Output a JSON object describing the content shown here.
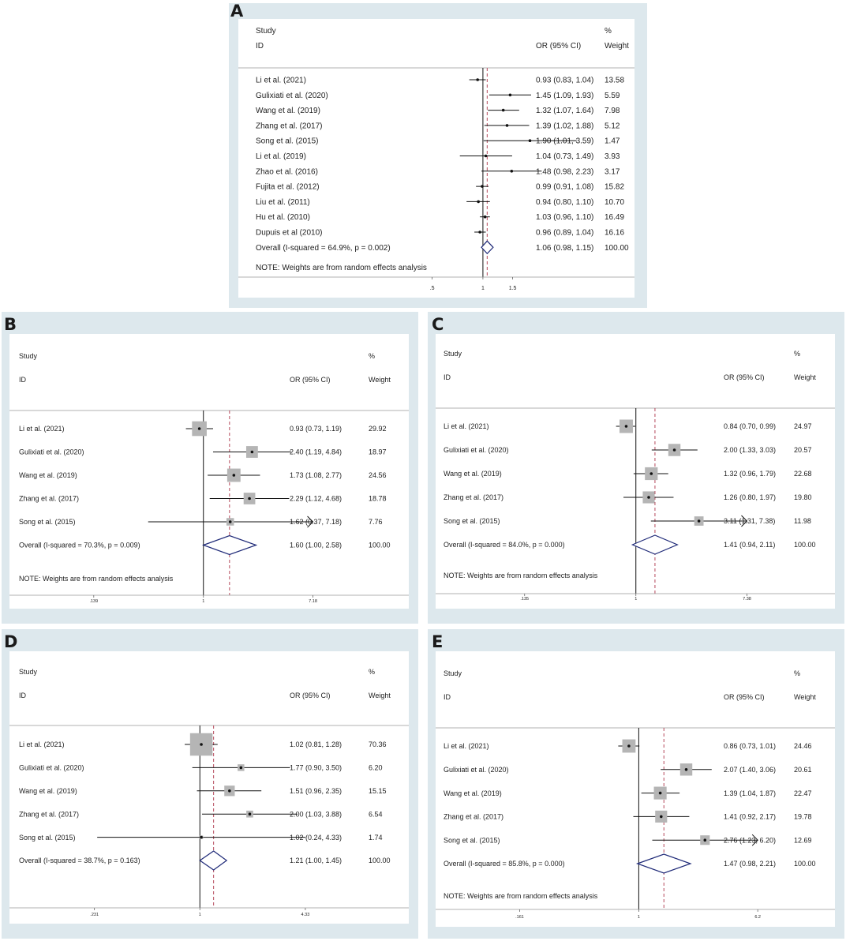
{
  "chart_data": [
    {
      "type": "forest",
      "panel": "A",
      "headers": {
        "study": "Study",
        "id": "ID",
        "or_ci": "OR (95% CI)",
        "pct": "%",
        "weight": "Weight"
      },
      "null_value": 1,
      "overall_estimate": 1.06,
      "x_ticks": [
        0.5,
        1,
        1.5
      ],
      "x_tick_labels": [
        ".5",
        "1",
        "1.5"
      ],
      "x_range": [
        0.21,
        2.5
      ],
      "square_style": "dot",
      "studies": [
        {
          "name": "Li et al. (2021)",
          "or": 0.93,
          "lo": 0.83,
          "hi": 1.04,
          "ci_text": "0.93 (0.83, 1.04)",
          "weight": 13.58,
          "weight_text": "13.58"
        },
        {
          "name": "Gulixiati et al. (2020)",
          "or": 1.45,
          "lo": 1.09,
          "hi": 1.93,
          "ci_text": "1.45 (1.09, 1.93)",
          "weight": 5.59,
          "weight_text": "5.59"
        },
        {
          "name": "Wang et al. (2019)",
          "or": 1.32,
          "lo": 1.07,
          "hi": 1.64,
          "ci_text": "1.32 (1.07, 1.64)",
          "weight": 7.98,
          "weight_text": "7.98"
        },
        {
          "name": "Zhang et al.  (2017)",
          "or": 1.39,
          "lo": 1.02,
          "hi": 1.88,
          "ci_text": "1.39 (1.02, 1.88)",
          "weight": 5.12,
          "weight_text": "5.12"
        },
        {
          "name": "Song et al.  (2015)",
          "or": 1.9,
          "lo": 1.01,
          "hi": 3.59,
          "ci_text": "1.90 (1.01, 3.59)",
          "weight": 1.47,
          "weight_text": "1.47"
        },
        {
          "name": "Li et al.  (2019)",
          "or": 1.04,
          "lo": 0.73,
          "hi": 1.49,
          "ci_text": "1.04 (0.73, 1.49)",
          "weight": 3.93,
          "weight_text": "3.93"
        },
        {
          "name": "Zhao et al. (2016)",
          "or": 1.48,
          "lo": 0.98,
          "hi": 2.23,
          "ci_text": "1.48 (0.98, 2.23)",
          "weight": 3.17,
          "weight_text": "3.17"
        },
        {
          "name": "Fujita et al.  (2012)",
          "or": 0.99,
          "lo": 0.91,
          "hi": 1.08,
          "ci_text": "0.99 (0.91, 1.08)",
          "weight": 15.82,
          "weight_text": "15.82"
        },
        {
          "name": "Liu et al.  (2011)",
          "or": 0.94,
          "lo": 0.8,
          "hi": 1.1,
          "ci_text": "0.94 (0.80, 1.10)",
          "weight": 10.7,
          "weight_text": "10.70"
        },
        {
          "name": "Hu et al. (2010)",
          "or": 1.03,
          "lo": 0.96,
          "hi": 1.1,
          "ci_text": "1.03 (0.96, 1.10)",
          "weight": 16.49,
          "weight_text": "16.49"
        },
        {
          "name": "Dupuis et al (2010)",
          "or": 0.96,
          "lo": 0.89,
          "hi": 1.04,
          "ci_text": "0.96 (0.89, 1.04)",
          "weight": 16.16,
          "weight_text": "16.16"
        }
      ],
      "overall": {
        "label": "Overall  (I-squared = 64.9%, p = 0.002)",
        "or": 1.06,
        "lo": 0.98,
        "hi": 1.15,
        "ci_text": "1.06 (0.98, 1.15)",
        "weight_text": "100.00"
      },
      "note": "NOTE: Weights are from random effects analysis"
    },
    {
      "type": "forest",
      "panel": "B",
      "headers": {
        "study": "Study",
        "id": "ID",
        "or_ci": "OR (95% CI)",
        "pct": "%",
        "weight": "Weight"
      },
      "null_value": 1,
      "overall_estimate": 1.6,
      "x_ticks": [
        0.139,
        1,
        7.18
      ],
      "x_tick_labels": [
        ".139",
        "1",
        "7.18"
      ],
      "x_range": [
        0.095,
        9.2
      ],
      "square_style": "box",
      "studies": [
        {
          "name": "Li et al. (2021)",
          "or": 0.93,
          "lo": 0.73,
          "hi": 1.19,
          "ci_text": "0.93 (0.73, 1.19)",
          "weight": 29.92,
          "weight_text": "29.92"
        },
        {
          "name": "Gulixiati et al. (2020)",
          "or": 2.4,
          "lo": 1.19,
          "hi": 4.84,
          "ci_text": "2.40 (1.19, 4.84)",
          "weight": 18.97,
          "weight_text": "18.97"
        },
        {
          "name": "Wang et al. (2019)",
          "or": 1.73,
          "lo": 1.08,
          "hi": 2.77,
          "ci_text": "1.73 (1.08, 2.77)",
          "weight": 24.56,
          "weight_text": "24.56"
        },
        {
          "name": "Zhang et al.  (2017)",
          "or": 2.29,
          "lo": 1.12,
          "hi": 4.68,
          "ci_text": "2.29 (1.12, 4.68)",
          "weight": 18.78,
          "weight_text": "18.78"
        },
        {
          "name": "Song et al.  (2015)",
          "or": 1.62,
          "lo": 0.37,
          "hi": 7.18,
          "ci_text": "1.62 (0.37, 7.18)",
          "weight": 7.76,
          "weight_text": "7.76",
          "arrow": true
        }
      ],
      "overall": {
        "label": "Overall  (I-squared = 70.3%, p = 0.009)",
        "or": 1.6,
        "lo": 1.0,
        "hi": 2.58,
        "ci_text": "1.60 (1.00, 2.58)",
        "weight_text": "100.00"
      },
      "note": "NOTE: Weights are from random effects analysis"
    },
    {
      "type": "forest",
      "panel": "C",
      "headers": {
        "study": "Study",
        "id": "ID",
        "or_ci": "OR (95% CI)",
        "pct": "%",
        "weight": "Weight"
      },
      "null_value": 1,
      "overall_estimate": 1.41,
      "x_ticks": [
        0.135,
        1,
        7.38
      ],
      "x_tick_labels": [
        ".135",
        "1",
        "7.38"
      ],
      "x_range": [
        0.095,
        9.2
      ],
      "square_style": "box",
      "studies": [
        {
          "name": "Li et al. (2021)",
          "or": 0.84,
          "lo": 0.7,
          "hi": 0.99,
          "ci_text": "0.84 (0.70, 0.99)",
          "weight": 24.97,
          "weight_text": "24.97"
        },
        {
          "name": "Gulixiati et al. (2020)",
          "or": 2.0,
          "lo": 1.33,
          "hi": 3.03,
          "ci_text": "2.00 (1.33, 3.03)",
          "weight": 20.57,
          "weight_text": "20.57"
        },
        {
          "name": "Wang et al. (2019)",
          "or": 1.32,
          "lo": 0.96,
          "hi": 1.79,
          "ci_text": "1.32 (0.96, 1.79)",
          "weight": 22.68,
          "weight_text": "22.68"
        },
        {
          "name": "Zhang et al.  (2017)",
          "or": 1.26,
          "lo": 0.8,
          "hi": 1.97,
          "ci_text": "1.26 (0.80, 1.97)",
          "weight": 19.8,
          "weight_text": "19.80"
        },
        {
          "name": "Song et al.  (2015)",
          "or": 3.11,
          "lo": 1.31,
          "hi": 7.38,
          "ci_text": "3.11 (1.31, 7.38)",
          "weight": 11.98,
          "weight_text": "11.98",
          "arrow": true
        }
      ],
      "overall": {
        "label": "Overall  (I-squared = 84.0%, p = 0.000)",
        "or": 1.41,
        "lo": 0.94,
        "hi": 2.11,
        "ci_text": "1.41 (0.94, 2.11)",
        "weight_text": "100.00"
      },
      "note": "NOTE: Weights are from random effects analysis"
    },
    {
      "type": "forest",
      "panel": "D",
      "headers": {
        "study": "Study",
        "id": "ID",
        "or_ci": "OR (95% CI)",
        "pct": "%",
        "weight": "Weight"
      },
      "null_value": 1,
      "overall_estimate": 1.21,
      "x_ticks": [
        0.231,
        1,
        4.33
      ],
      "x_tick_labels": [
        ".231",
        "1",
        "4.33"
      ],
      "x_range": [
        0.14,
        7.1
      ],
      "square_style": "box",
      "studies": [
        {
          "name": "Li et al. (2021)",
          "or": 1.02,
          "lo": 0.81,
          "hi": 1.28,
          "ci_text": "1.02 (0.81, 1.28)",
          "weight": 70.36,
          "weight_text": "70.36"
        },
        {
          "name": "Gulixiati et al. (2020)",
          "or": 1.77,
          "lo": 0.9,
          "hi": 3.5,
          "ci_text": "1.77 (0.90, 3.50)",
          "weight": 6.2,
          "weight_text": "6.20"
        },
        {
          "name": "Wang et al. (2019)",
          "or": 1.51,
          "lo": 0.96,
          "hi": 2.35,
          "ci_text": "1.51 (0.96, 2.35)",
          "weight": 15.15,
          "weight_text": "15.15"
        },
        {
          "name": "Zhang et al.  (2017)",
          "or": 2.0,
          "lo": 1.03,
          "hi": 3.88,
          "ci_text": "2.00 (1.03, 3.88)",
          "weight": 6.54,
          "weight_text": "6.54"
        },
        {
          "name": "Song et al.  (2015)",
          "or": 1.02,
          "lo": 0.24,
          "hi": 4.33,
          "ci_text": "1.02 (0.24, 4.33)",
          "weight": 1.74,
          "weight_text": "1.74"
        }
      ],
      "overall": {
        "label": "Overall  (I-squared = 38.7%, p = 0.163)",
        "or": 1.21,
        "lo": 1.0,
        "hi": 1.45,
        "ci_text": "1.21 (1.00, 1.45)",
        "weight_text": "100.00"
      },
      "note": ""
    },
    {
      "type": "forest",
      "panel": "E",
      "headers": {
        "study": "Study",
        "id": "ID",
        "or_ci": "OR (95% CI)",
        "pct": "%",
        "weight": "Weight"
      },
      "null_value": 1,
      "overall_estimate": 1.47,
      "x_ticks": [
        0.161,
        1,
        6.2
      ],
      "x_tick_labels": [
        ".161",
        "1",
        "6.2"
      ],
      "x_range": [
        0.11,
        7.6
      ],
      "square_style": "box",
      "studies": [
        {
          "name": "Li et al. (2021)",
          "or": 0.86,
          "lo": 0.73,
          "hi": 1.01,
          "ci_text": "0.86 (0.73, 1.01)",
          "weight": 24.46,
          "weight_text": "24.46"
        },
        {
          "name": "Gulixiati et al. (2020)",
          "or": 2.07,
          "lo": 1.4,
          "hi": 3.06,
          "ci_text": "2.07 (1.40, 3.06)",
          "weight": 20.61,
          "weight_text": "20.61"
        },
        {
          "name": "Wang et al. (2019)",
          "or": 1.39,
          "lo": 1.04,
          "hi": 1.87,
          "ci_text": "1.39 (1.04, 1.87)",
          "weight": 22.47,
          "weight_text": "22.47"
        },
        {
          "name": "Zhang et al.  (2017)",
          "or": 1.41,
          "lo": 0.92,
          "hi": 2.17,
          "ci_text": "1.41 (0.92, 2.17)",
          "weight": 19.78,
          "weight_text": "19.78"
        },
        {
          "name": "Song et al.  (2015)",
          "or": 2.76,
          "lo": 1.23,
          "hi": 6.2,
          "ci_text": "2.76 (1.23, 6.20)",
          "weight": 12.69,
          "weight_text": "12.69",
          "arrow": true
        }
      ],
      "overall": {
        "label": "Overall  (I-squared = 85.8%, p = 0.000)",
        "or": 1.47,
        "lo": 0.98,
        "hi": 2.21,
        "ci_text": "1.47 (0.98, 2.21)",
        "weight_text": "100.00"
      },
      "note": "NOTE: Weights are from random effects analysis"
    }
  ],
  "colors": {
    "panel_bg": "#dde8ed",
    "diamond": "#1f2a78",
    "reference_line": "#b5485a",
    "square_fill": "#b5b5b5",
    "text": "#222222"
  }
}
